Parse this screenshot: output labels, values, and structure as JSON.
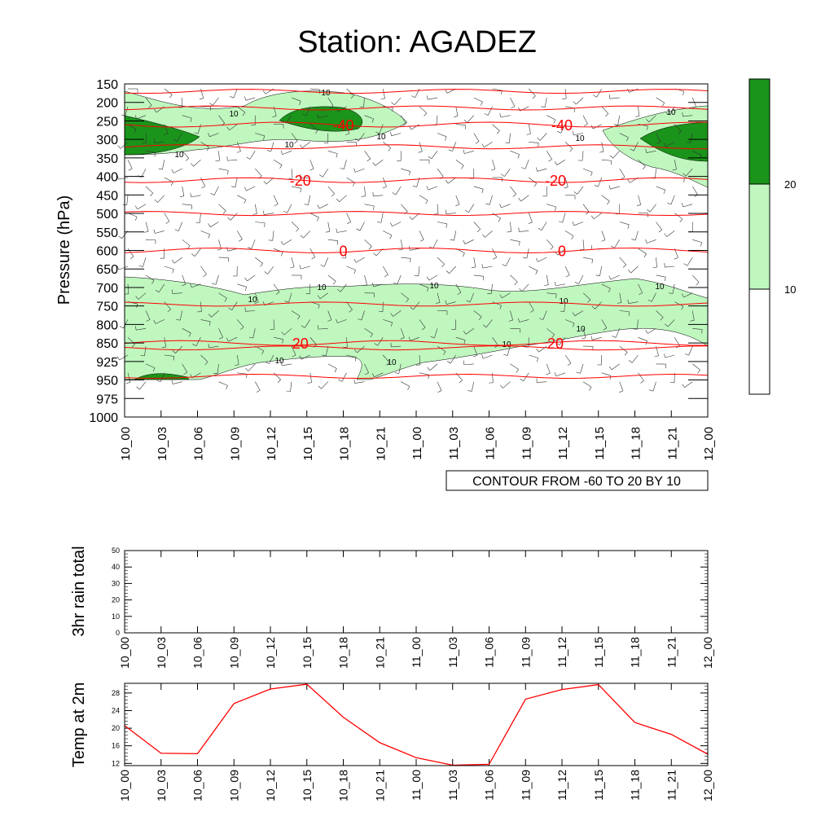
{
  "title": "Station: AGADEZ",
  "time_labels": [
    "10_00",
    "10_03",
    "10_06",
    "10_09",
    "10_12",
    "10_15",
    "10_18",
    "10_21",
    "11_00",
    "11_03",
    "11_06",
    "11_09",
    "11_12",
    "11_15",
    "11_18",
    "11_21",
    "12_00"
  ],
  "colors": {
    "shade_light": "#bff7bf",
    "shade_dark": "#1a941a",
    "contour_red": "#ff0000",
    "temp_line": "#ff0000",
    "axis": "#000000"
  },
  "chart_data": [
    {
      "type": "heatmap",
      "name": "sounding",
      "ylabel": "Pressure (hPa)",
      "y_ticks": [
        150,
        200,
        250,
        300,
        350,
        400,
        450,
        500,
        550,
        600,
        650,
        700,
        750,
        800,
        850,
        925,
        950,
        975,
        1000
      ],
      "x_ticks": [
        "10_00",
        "10_03",
        "10_06",
        "10_09",
        "10_12",
        "10_15",
        "10_18",
        "10_21",
        "11_00",
        "11_03",
        "11_06",
        "11_09",
        "11_12",
        "11_15",
        "11_18",
        "11_21",
        "12_00"
      ],
      "contour_info": "CONTOUR FROM -60 TO 20 BY 10",
      "temperature_contours": [
        {
          "level": -40,
          "labels_at": [
            "10_18",
            "11_12"
          ],
          "pressure": 260
        },
        {
          "level": -20,
          "labels_at": [
            "10_15",
            "11_12"
          ],
          "pressure": 410
        },
        {
          "level": 0,
          "labels_at": [
            "10_18",
            "11_12"
          ],
          "pressure": 600
        },
        {
          "level": 20,
          "labels_at": [
            "10_15",
            "11_12"
          ],
          "pressure": 850
        }
      ],
      "wind_speed_shading": {
        "levels": [
          10,
          20
        ],
        "legend_labels": [
          "20",
          "10"
        ],
        "contour_label": "10"
      }
    },
    {
      "type": "line",
      "name": "rain",
      "ylabel": "3hr rain total",
      "x": [
        "10_00",
        "10_03",
        "10_06",
        "10_09",
        "10_12",
        "10_15",
        "10_18",
        "10_21",
        "11_00",
        "11_03",
        "11_06",
        "11_09",
        "11_12",
        "11_15",
        "11_18",
        "11_21",
        "12_00"
      ],
      "y_ticks": [
        0,
        10,
        20,
        30,
        40,
        50
      ],
      "ylim": [
        0,
        50
      ],
      "values": [
        0,
        0,
        0,
        0,
        0,
        0,
        0,
        0,
        0,
        0,
        0,
        0,
        0,
        0,
        0,
        0,
        0
      ]
    },
    {
      "type": "line",
      "name": "temp2m",
      "ylabel": "Temp at 2m",
      "x": [
        "10_00",
        "10_03",
        "10_06",
        "10_09",
        "10_12",
        "10_15",
        "10_18",
        "10_21",
        "11_00",
        "11_03",
        "11_06",
        "11_09",
        "11_12",
        "11_15",
        "11_18",
        "11_21",
        "12_00"
      ],
      "y_ticks": [
        12,
        16,
        20,
        24,
        28
      ],
      "ylim": [
        11.5,
        30.2
      ],
      "values": [
        20.6,
        14.3,
        14.2,
        25.6,
        28.9,
        30.0,
        22.5,
        16.7,
        13.3,
        11.6,
        11.8,
        26.6,
        28.8,
        29.9,
        21.3,
        18.6,
        14.1
      ]
    }
  ]
}
